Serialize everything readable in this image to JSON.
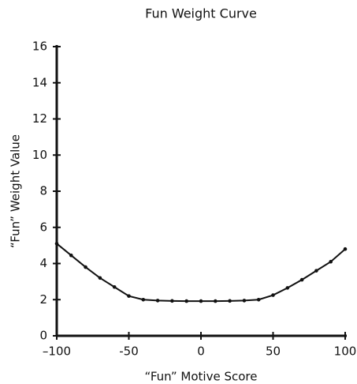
{
  "chart_data": {
    "type": "line",
    "title": "Fun Weight Curve",
    "x_label": "“Fun” Motive Score",
    "y_label": "“Fun” Weight Value",
    "x": [
      -100,
      -90,
      -80,
      -70,
      -60,
      -50,
      -40,
      -30,
      -20,
      -10,
      0,
      10,
      20,
      30,
      40,
      50,
      60,
      70,
      80,
      90,
      100
    ],
    "series": [
      {
        "name": "Fun",
        "color": "#111111",
        "values": [
          5.1,
          4.45,
          3.8,
          3.2,
          2.7,
          2.2,
          2.0,
          1.95,
          1.93,
          1.92,
          1.92,
          1.92,
          1.93,
          1.95,
          2.0,
          2.25,
          2.65,
          3.1,
          3.6,
          4.1,
          4.8
        ]
      }
    ],
    "xlim": [
      -100,
      100
    ],
    "xticks": [
      {
        "value": -100,
        "label": "–100"
      },
      -50,
      0,
      50,
      100
    ],
    "ylim": [
      0,
      16
    ],
    "yticks": [
      0,
      2,
      4,
      6,
      8,
      10,
      12,
      14,
      16
    ],
    "grid": false
  }
}
